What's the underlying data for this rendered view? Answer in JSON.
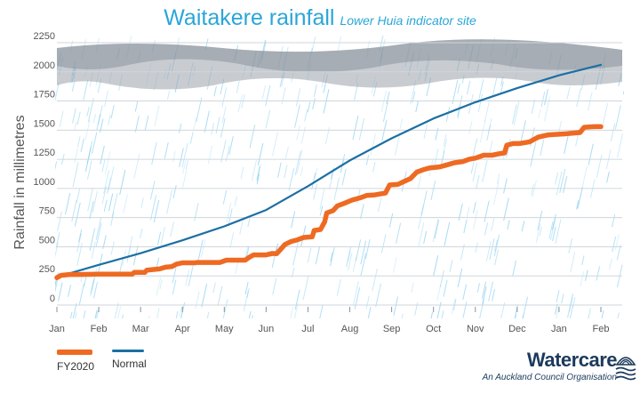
{
  "title": "Waitakere rainfall",
  "subtitle": "Lower Huia indicator site",
  "brand": {
    "name": "Watercare",
    "tagline": "An Auckland Council Organisation"
  },
  "colors": {
    "fy2020": "#ee6a22",
    "normal": "#1c6fa3",
    "title": "#2aa6d9",
    "rain": "#7fcbee"
  },
  "chart_data": {
    "type": "line",
    "title": "Waitakere rainfall",
    "subtitle": "Lower Huia indicator site",
    "xlabel": "",
    "ylabel": "Rainfall in millimetres",
    "ylim": [
      0,
      2250
    ],
    "yticks": [
      0,
      250,
      500,
      750,
      1000,
      1250,
      1500,
      1750,
      2000,
      2250
    ],
    "xticks": [
      "Jan",
      "Feb",
      "Mar",
      "Apr",
      "May",
      "Jun",
      "Jul",
      "Aug",
      "Sep",
      "Oct",
      "Nov",
      "Dec",
      "Jan",
      "Feb"
    ],
    "xlim": [
      0,
      13
    ],
    "series": [
      {
        "name": "FY2020",
        "points": [
          [
            0,
            235
          ],
          [
            0.1,
            255
          ],
          [
            0.3,
            262
          ],
          [
            0.6,
            262
          ],
          [
            1.0,
            265
          ],
          [
            1.5,
            265
          ],
          [
            1.8,
            265
          ],
          [
            1.85,
            280
          ],
          [
            2.1,
            280
          ],
          [
            2.15,
            300
          ],
          [
            2.45,
            310
          ],
          [
            2.6,
            325
          ],
          [
            2.75,
            330
          ],
          [
            2.85,
            350
          ],
          [
            3.0,
            362
          ],
          [
            3.3,
            362
          ],
          [
            3.35,
            365
          ],
          [
            3.9,
            365
          ],
          [
            4.05,
            385
          ],
          [
            4.5,
            385
          ],
          [
            4.6,
            410
          ],
          [
            4.7,
            430
          ],
          [
            5.0,
            430
          ],
          [
            5.05,
            435
          ],
          [
            5.15,
            442
          ],
          [
            5.25,
            440
          ],
          [
            5.35,
            480
          ],
          [
            5.45,
            520
          ],
          [
            5.6,
            545
          ],
          [
            5.75,
            560
          ],
          [
            5.9,
            580
          ],
          [
            6.1,
            585
          ],
          [
            6.15,
            640
          ],
          [
            6.3,
            648
          ],
          [
            6.4,
            715
          ],
          [
            6.45,
            790
          ],
          [
            6.6,
            810
          ],
          [
            6.7,
            850
          ],
          [
            6.85,
            870
          ],
          [
            7.05,
            900
          ],
          [
            7.25,
            920
          ],
          [
            7.4,
            940
          ],
          [
            7.6,
            945
          ],
          [
            7.85,
            960
          ],
          [
            7.95,
            1030
          ],
          [
            8.15,
            1035
          ],
          [
            8.3,
            1060
          ],
          [
            8.45,
            1085
          ],
          [
            8.6,
            1140
          ],
          [
            8.75,
            1160
          ],
          [
            8.9,
            1175
          ],
          [
            9.15,
            1185
          ],
          [
            9.3,
            1200
          ],
          [
            9.5,
            1220
          ],
          [
            9.7,
            1230
          ],
          [
            9.85,
            1250
          ],
          [
            10.0,
            1260
          ],
          [
            10.2,
            1285
          ],
          [
            10.4,
            1285
          ],
          [
            10.6,
            1300
          ],
          [
            10.7,
            1305
          ],
          [
            10.75,
            1370
          ],
          [
            10.9,
            1385
          ],
          [
            11.05,
            1385
          ],
          [
            11.3,
            1400
          ],
          [
            11.5,
            1440
          ],
          [
            11.75,
            1460
          ],
          [
            12.0,
            1465
          ],
          [
            12.2,
            1470
          ],
          [
            12.5,
            1480
          ],
          [
            12.6,
            1525
          ],
          [
            12.85,
            1530
          ],
          [
            13.0,
            1530
          ]
        ]
      },
      {
        "name": "Normal",
        "points": [
          [
            0,
            240
          ],
          [
            1,
            345
          ],
          [
            2,
            445
          ],
          [
            3,
            555
          ],
          [
            4,
            675
          ],
          [
            5,
            815
          ],
          [
            6,
            1020
          ],
          [
            7,
            1240
          ],
          [
            8,
            1430
          ],
          [
            9,
            1600
          ],
          [
            10,
            1740
          ],
          [
            11,
            1860
          ],
          [
            12,
            1970
          ],
          [
            13,
            2060
          ]
        ]
      }
    ]
  }
}
